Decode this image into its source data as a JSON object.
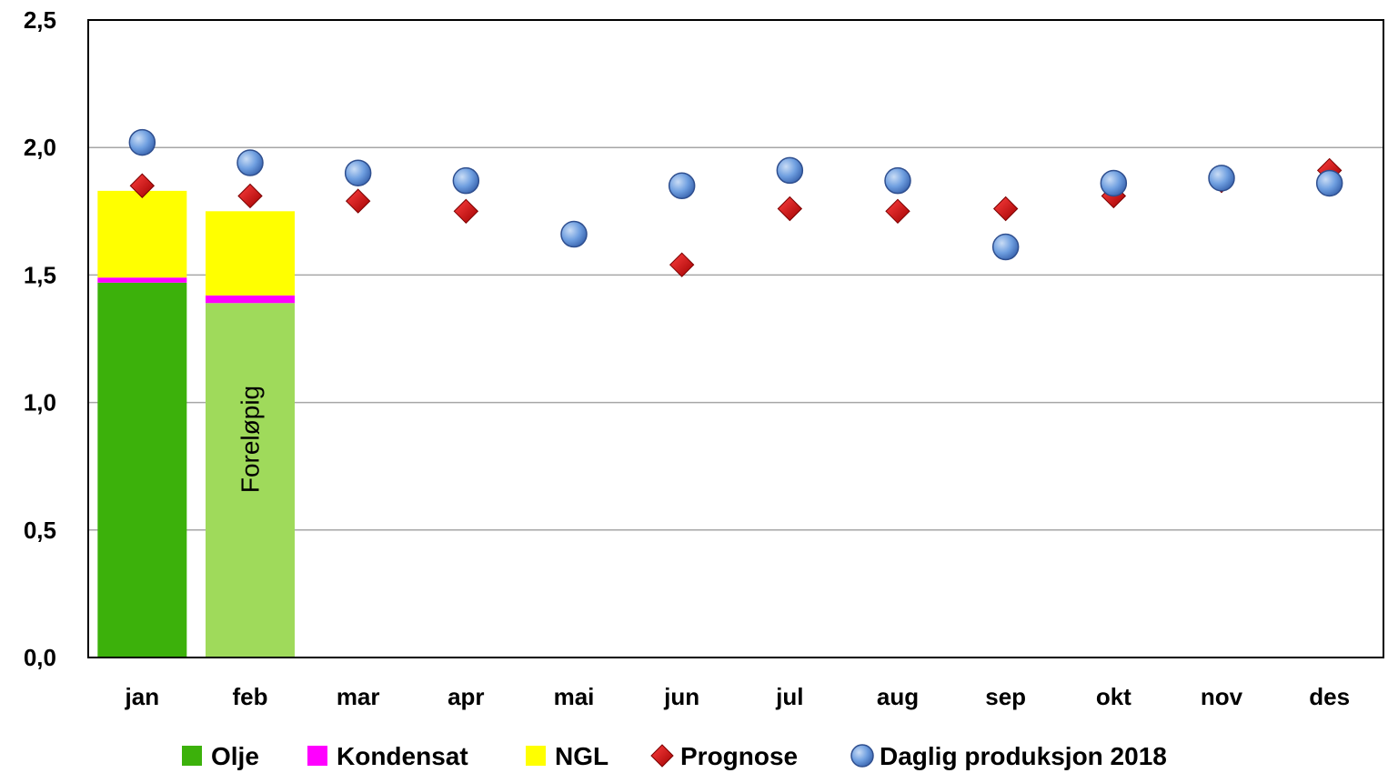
{
  "chart_data": {
    "type": "bar",
    "title": "",
    "xlabel": "",
    "ylabel": "",
    "ylim": [
      0,
      2.5
    ],
    "yticks": [
      "0,0",
      "0,5",
      "1,0",
      "1,5",
      "2,0",
      "2,5"
    ],
    "categories": [
      "jan",
      "feb",
      "mar",
      "apr",
      "mai",
      "jun",
      "jul",
      "aug",
      "sep",
      "okt",
      "nov",
      "des"
    ],
    "grid": true,
    "legend_position": "bottom",
    "stacked_series": [
      {
        "name": "Olje",
        "color": "#3CB10B",
        "values": [
          1.47,
          1.39,
          null,
          null,
          null,
          null,
          null,
          null,
          null,
          null,
          null,
          null
        ]
      },
      {
        "name": "Kondensat",
        "color": "#FF00FF",
        "values": [
          0.02,
          0.03,
          null,
          null,
          null,
          null,
          null,
          null,
          null,
          null,
          null,
          null
        ]
      },
      {
        "name": "NGL",
        "color": "#FFFF00",
        "values": [
          0.34,
          0.33,
          null,
          null,
          null,
          null,
          null,
          null,
          null,
          null,
          null,
          null
        ]
      }
    ],
    "preliminary_month": {
      "index": 1,
      "olje_color": "#9FDA5B",
      "label": "Foreløpig"
    },
    "marker_series": [
      {
        "name": "Prognose",
        "marker": "diamond",
        "color": "#C00000",
        "values": [
          1.85,
          1.81,
          1.79,
          1.75,
          1.66,
          1.54,
          1.76,
          1.75,
          1.76,
          1.81,
          1.87,
          1.91
        ]
      },
      {
        "name": "Daglig produksjon 2018",
        "marker": "circle",
        "color": "#4F81BD",
        "values": [
          2.02,
          1.94,
          1.9,
          1.87,
          1.66,
          1.85,
          1.91,
          1.87,
          1.61,
          1.86,
          1.88,
          1.86
        ]
      }
    ]
  }
}
